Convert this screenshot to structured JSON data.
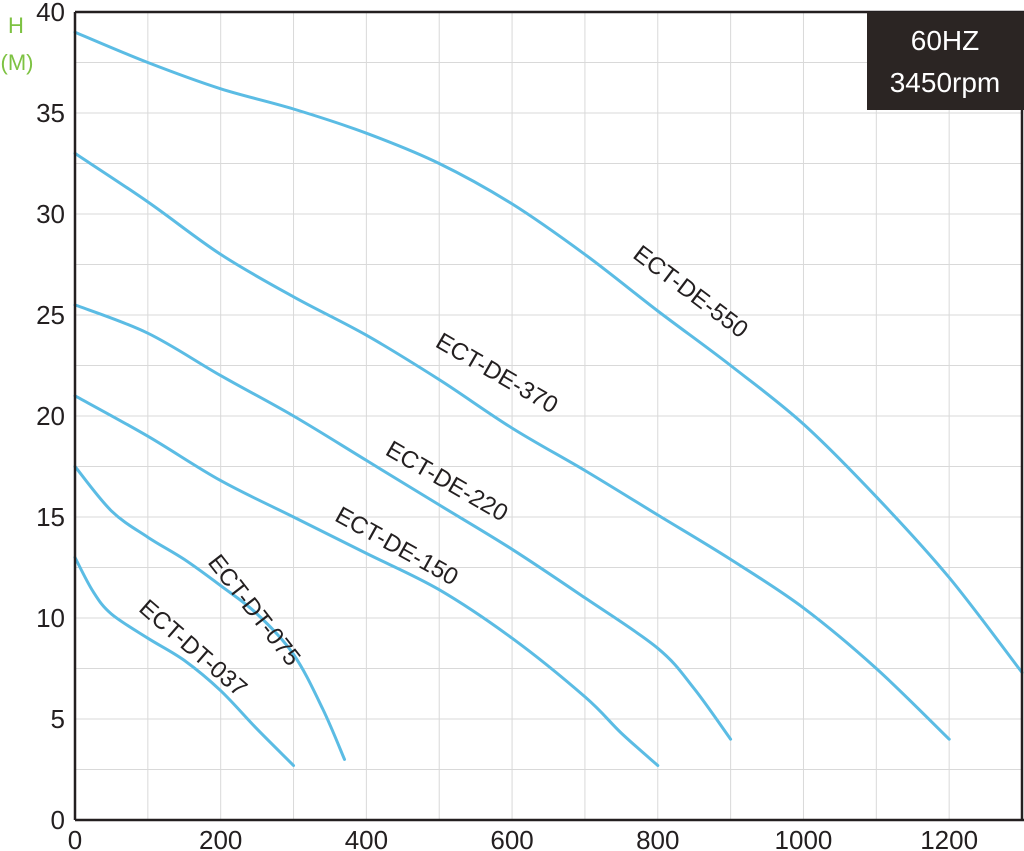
{
  "chart_data": {
    "type": "line",
    "ylabel_line1": "H",
    "ylabel_line2": "(M)",
    "xlim": [
      0,
      1300
    ],
    "ylim": [
      0,
      40
    ],
    "x_ticks": [
      0,
      200,
      400,
      600,
      800,
      1000,
      1200
    ],
    "y_ticks": [
      0,
      5,
      10,
      15,
      20,
      25,
      30,
      35,
      40
    ],
    "x_minor_step": 100,
    "y_minor_step": 2.5,
    "grid": true,
    "badge": {
      "line1": "60HZ",
      "line2": "3450rpm"
    },
    "colors": {
      "curve": "#5bbce4",
      "badge_bg": "#2b2523",
      "ylabel": "#7dc242"
    },
    "series": [
      {
        "name": "ECT-DT-037",
        "x": [
          0,
          25,
          50,
          100,
          150,
          200,
          250,
          300
        ],
        "y": [
          13,
          11.3,
          10.2,
          9.0,
          7.9,
          6.4,
          4.5,
          2.7
        ]
      },
      {
        "name": "ECT-DT-075",
        "x": [
          0,
          50,
          100,
          150,
          200,
          250,
          300,
          340,
          370
        ],
        "y": [
          17.5,
          15.3,
          14.0,
          12.9,
          11.6,
          10.2,
          8.2,
          5.5,
          3.0
        ]
      },
      {
        "name": "ECT-DE-150",
        "x": [
          0,
          100,
          200,
          300,
          400,
          500,
          600,
          700,
          750,
          800
        ],
        "y": [
          21,
          19.0,
          16.8,
          15.0,
          13.2,
          11.4,
          9.0,
          6.1,
          4.3,
          2.7
        ]
      },
      {
        "name": "ECT-DE-220",
        "x": [
          0,
          100,
          200,
          300,
          400,
          500,
          600,
          700,
          800,
          850,
          900
        ],
        "y": [
          25.5,
          24.1,
          22.0,
          20.0,
          17.8,
          15.6,
          13.4,
          11.0,
          8.5,
          6.5,
          4.0
        ]
      },
      {
        "name": "ECT-DE-370",
        "x": [
          0,
          100,
          200,
          300,
          400,
          500,
          600,
          700,
          800,
          900,
          1000,
          1100,
          1200
        ],
        "y": [
          33,
          30.6,
          28.0,
          25.9,
          24.0,
          21.8,
          19.4,
          17.3,
          15.1,
          12.9,
          10.5,
          7.5,
          4.0
        ]
      },
      {
        "name": "ECT-DE-550",
        "x": [
          0,
          100,
          200,
          300,
          400,
          500,
          600,
          700,
          800,
          900,
          1000,
          1100,
          1200,
          1300
        ],
        "y": [
          39,
          37.5,
          36.2,
          35.2,
          34.0,
          32.5,
          30.5,
          28.0,
          25.2,
          22.5,
          19.6,
          16.0,
          12.0,
          7.3
        ]
      }
    ]
  }
}
